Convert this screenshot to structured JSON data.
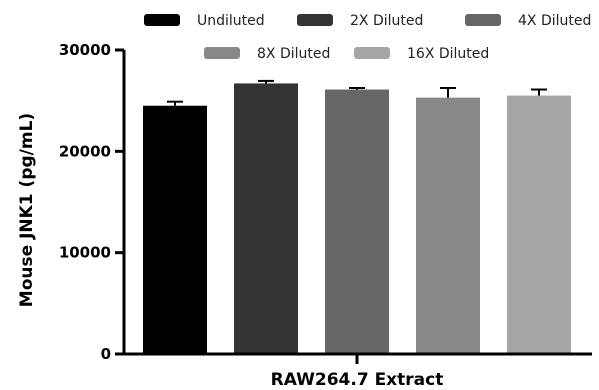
{
  "chart_data": {
    "type": "bar",
    "xlabel": "RAW264.7 Extract",
    "ylabel": "Mouse JNK1 (pg/mL)",
    "ylim": [
      0,
      30000
    ],
    "yticks": [
      0,
      10000,
      20000,
      30000
    ],
    "ytick_labels": [
      "0",
      "10000",
      "20000",
      "30000"
    ],
    "legend_position": "top",
    "grid": false,
    "series": [
      {
        "name": "Undiluted",
        "value": 24500,
        "error": 400,
        "color": "#000000"
      },
      {
        "name": "2X Diluted",
        "value": 26700,
        "error": 250,
        "color": "#333333"
      },
      {
        "name": "4X Diluted",
        "value": 26100,
        "error": 150,
        "color": "#666666"
      },
      {
        "name": "8X Diluted",
        "value": 25300,
        "error": 950,
        "color": "#888888"
      },
      {
        "name": "16X Diluted",
        "value": 25500,
        "error": 600,
        "color": "#a6a6a6"
      }
    ]
  }
}
